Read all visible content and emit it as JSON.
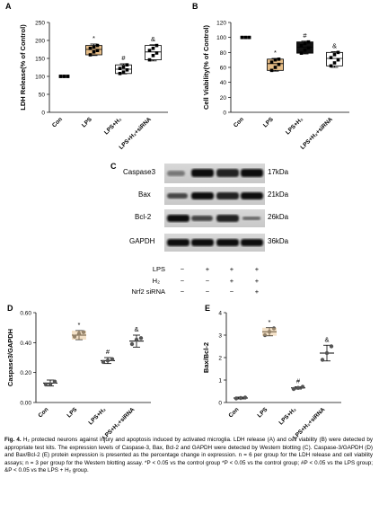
{
  "panels": {
    "A": {
      "label": "A",
      "ylabel": "LDH Release(% of Control)",
      "ticks": [
        "0",
        "50",
        "100",
        "150",
        "200",
        "250"
      ]
    },
    "B": {
      "label": "B",
      "ylabel": "Cell Viability(% of Control)",
      "ticks": [
        "0",
        "20",
        "40",
        "60",
        "80",
        "100",
        "120"
      ]
    },
    "C": {
      "label": "C"
    },
    "D": {
      "label": "D",
      "ylabel": "Caspase3/GAPDH",
      "ticks": [
        "0.00",
        "0.20",
        "0.40",
        "0.60"
      ]
    },
    "E": {
      "label": "E",
      "ylabel": "Bax/Bcl-2",
      "ticks": [
        "0",
        "1",
        "2",
        "3",
        "4"
      ]
    }
  },
  "groups": [
    "Con",
    "LPS",
    "LPS+H₂",
    "LPS+H₂+siRNA"
  ],
  "significance": {
    "lps": "*",
    "h2": "#",
    "sirna": "&"
  },
  "blot": {
    "proteins": [
      "Caspase3",
      "Bax",
      "Bcl-2",
      "GAPDH"
    ],
    "sizes": [
      "17kDa",
      "21kDa",
      "26kDa",
      "36kDa"
    ],
    "conditions": [
      {
        "name": "LPS",
        "marks": [
          "−",
          "+",
          "+",
          "+"
        ]
      },
      {
        "name": "H₂",
        "marks": [
          "−",
          "−",
          "+",
          "+"
        ]
      },
      {
        "name": "Nrf2 siRNA",
        "marks": [
          "−",
          "−",
          "−",
          "+"
        ]
      }
    ]
  },
  "caption": {
    "fig_label": "Fig. 4.",
    "text": "H₂ protected neurons against injury and apoptosis induced by activated microglia. LDH release (A) and cell viability (B) were detected by appropriate test kits. The expression levels of Caspase-3, Bax, Bcl-2 and GAPDH were detected by Western blotting (C). Caspase-3/GAPDH (D) and Bax/Bcl-2 (E) protein expression is presented as the percentage change in expression. n = 6 per group for the LDH release and cell viability assays; n = 3 per group for the Western blotting assay. *P < 0.05 vs the control group *P < 0.05 vs the control group; #P < 0.05 vs the LPS group; &P < 0.05 vs the LPS + H₂ group."
  },
  "chart_data": [
    {
      "type": "bar",
      "panel": "A",
      "ylim": [
        0,
        250
      ],
      "categories": [
        "Con",
        "LPS",
        "LPS+H₂",
        "LPS+H₂+siRNA"
      ],
      "values": [
        100,
        175,
        120,
        168
      ],
      "min": [
        100,
        158,
        107,
        143
      ],
      "max": [
        100,
        190,
        135,
        188
      ],
      "points": [
        [
          100,
          100,
          100,
          100,
          100,
          100
        ],
        [
          160,
          168,
          172,
          178,
          182,
          186
        ],
        [
          108,
          112,
          118,
          122,
          126,
          132
        ],
        [
          146,
          158,
          165,
          172,
          178,
          186
        ]
      ],
      "colors": [
        "#ffffff",
        "#e5bc86",
        "#ffffff",
        "#ffffff"
      ],
      "marks": [
        "",
        "*",
        "#",
        "&"
      ]
    },
    {
      "type": "bar",
      "panel": "B",
      "ylim": [
        0,
        120
      ],
      "categories": [
        "Con",
        "LPS",
        "LPS+H₂",
        "LPS+H₂+siRNA"
      ],
      "values": [
        100,
        65,
        87,
        72
      ],
      "min": [
        100,
        55,
        78,
        60
      ],
      "max": [
        100,
        72,
        95,
        81
      ],
      "points": [
        [
          100,
          100,
          100,
          100,
          100,
          100
        ],
        [
          56,
          60,
          64,
          67,
          70,
          71
        ],
        [
          79,
          83,
          86,
          89,
          92,
          94
        ],
        [
          62,
          66,
          70,
          73,
          77,
          80
        ]
      ],
      "colors": [
        "#ffffff",
        "#e5bc86",
        "#111111",
        "#ffffff"
      ],
      "marks": [
        "",
        "*",
        "#",
        "&"
      ]
    },
    {
      "type": "scatter",
      "panel": "D",
      "ylim": [
        0,
        0.6
      ],
      "categories": [
        "Con",
        "LPS",
        "LPS+H₂",
        "LPS+H₂+siRNA"
      ],
      "values": [
        0.13,
        0.45,
        0.28,
        0.41
      ],
      "sd": [
        0.02,
        0.03,
        0.02,
        0.04
      ],
      "points": [
        [
          0.12,
          0.12,
          0.14
        ],
        [
          0.44,
          0.46,
          0.47
        ],
        [
          0.27,
          0.28,
          0.29
        ],
        [
          0.39,
          0.42,
          0.43
        ]
      ],
      "colors": [
        "#888888",
        "#e5bc86",
        "#888888",
        "#888888"
      ],
      "marks": [
        "",
        "*",
        "#",
        "&"
      ]
    },
    {
      "type": "scatter",
      "panel": "E",
      "ylim": [
        0,
        4
      ],
      "categories": [
        "Con",
        "LPS",
        "LPS+H₂",
        "LPS+H₂+siRNA"
      ],
      "values": [
        0.2,
        3.15,
        0.65,
        2.2
      ],
      "sd": [
        0.04,
        0.18,
        0.05,
        0.35
      ],
      "points": [
        [
          0.18,
          0.2,
          0.22
        ],
        [
          3.0,
          3.15,
          3.3
        ],
        [
          0.6,
          0.65,
          0.7
        ],
        [
          1.9,
          2.2,
          2.5
        ]
      ],
      "colors": [
        "#888888",
        "#e5bc86",
        "#888888",
        "#888888"
      ],
      "marks": [
        "",
        "*",
        "#",
        "&"
      ]
    }
  ]
}
